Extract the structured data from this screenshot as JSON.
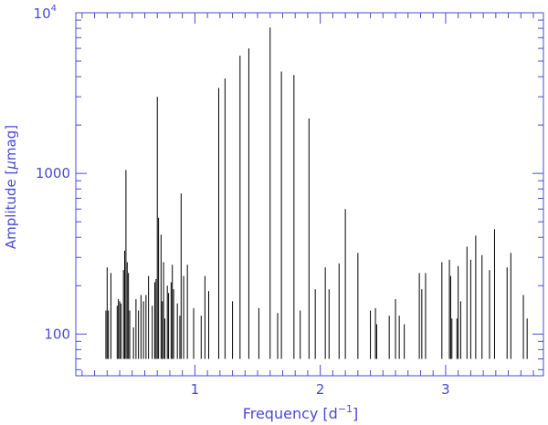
{
  "chart_data": {
    "type": "bar",
    "style": "stick-periodogram",
    "xlabel_main": "Frequency [d",
    "xlabel_sup": "−1",
    "xlabel_close": "]",
    "ylabel_pre": "Amplitude [",
    "ylabel_mu": "μ",
    "ylabel_post": "mag]",
    "xlim": [
      0.05,
      3.78
    ],
    "ylim": [
      55,
      10000
    ],
    "yscale": "log",
    "grid": false,
    "xticks": [
      {
        "value": 1,
        "label": "1"
      },
      {
        "value": 2,
        "label": "2"
      },
      {
        "value": 3,
        "label": "3"
      }
    ],
    "yticks": [
      {
        "value": 100,
        "label": "100"
      },
      {
        "value": 1000,
        "label": "1000"
      }
    ],
    "ytick_top": {
      "value": 10000,
      "base": "10",
      "exp": "4"
    },
    "baseline": 70,
    "peaks": [
      [
        0.29,
        140
      ],
      [
        0.3,
        260
      ],
      [
        0.31,
        140
      ],
      [
        0.33,
        240
      ],
      [
        0.38,
        150
      ],
      [
        0.39,
        165
      ],
      [
        0.4,
        160
      ],
      [
        0.41,
        155
      ],
      [
        0.43,
        250
      ],
      [
        0.44,
        330
      ],
      [
        0.45,
        1050
      ],
      [
        0.46,
        280
      ],
      [
        0.47,
        240
      ],
      [
        0.48,
        140
      ],
      [
        0.51,
        110
      ],
      [
        0.53,
        165
      ],
      [
        0.55,
        140
      ],
      [
        0.57,
        175
      ],
      [
        0.59,
        160
      ],
      [
        0.61,
        175
      ],
      [
        0.63,
        230
      ],
      [
        0.66,
        150
      ],
      [
        0.68,
        210
      ],
      [
        0.69,
        220
      ],
      [
        0.7,
        3000
      ],
      [
        0.71,
        530
      ],
      [
        0.73,
        415
      ],
      [
        0.74,
        160
      ],
      [
        0.75,
        280
      ],
      [
        0.76,
        125
      ],
      [
        0.78,
        200
      ],
      [
        0.79,
        180
      ],
      [
        0.81,
        210
      ],
      [
        0.82,
        270
      ],
      [
        0.83,
        190
      ],
      [
        0.86,
        155
      ],
      [
        0.88,
        130
      ],
      [
        0.89,
        750
      ],
      [
        0.91,
        230
      ],
      [
        0.94,
        270
      ],
      [
        0.99,
        145
      ],
      [
        1.05,
        130
      ],
      [
        1.08,
        230
      ],
      [
        1.11,
        185
      ],
      [
        1.19,
        3400
      ],
      [
        1.24,
        3900
      ],
      [
        1.3,
        160
      ],
      [
        1.36,
        5400
      ],
      [
        1.43,
        6000
      ],
      [
        1.51,
        145
      ],
      [
        1.6,
        8100
      ],
      [
        1.66,
        135
      ],
      [
        1.69,
        4300
      ],
      [
        1.79,
        4100
      ],
      [
        1.84,
        140
      ],
      [
        1.91,
        2200
      ],
      [
        1.96,
        190
      ],
      [
        2.04,
        260
      ],
      [
        2.07,
        190
      ],
      [
        2.15,
        275
      ],
      [
        2.2,
        600
      ],
      [
        2.3,
        320
      ],
      [
        2.4,
        140
      ],
      [
        2.44,
        145
      ],
      [
        2.45,
        115
      ],
      [
        2.55,
        130
      ],
      [
        2.6,
        165
      ],
      [
        2.63,
        130
      ],
      [
        2.67,
        115
      ],
      [
        2.79,
        240
      ],
      [
        2.81,
        190
      ],
      [
        2.84,
        240
      ],
      [
        2.97,
        280
      ],
      [
        3.03,
        290
      ],
      [
        3.04,
        230
      ],
      [
        3.05,
        125
      ],
      [
        3.09,
        125
      ],
      [
        3.1,
        265
      ],
      [
        3.12,
        160
      ],
      [
        3.17,
        350
      ],
      [
        3.2,
        290
      ],
      [
        3.24,
        410
      ],
      [
        3.29,
        310
      ],
      [
        3.35,
        250
      ],
      [
        3.39,
        450
      ],
      [
        3.49,
        260
      ],
      [
        3.52,
        320
      ],
      [
        3.62,
        175
      ],
      [
        3.65,
        125
      ]
    ],
    "colors": {
      "axis": "#4a4ad4",
      "peaks": "#000000",
      "background": "#ffffff"
    }
  }
}
